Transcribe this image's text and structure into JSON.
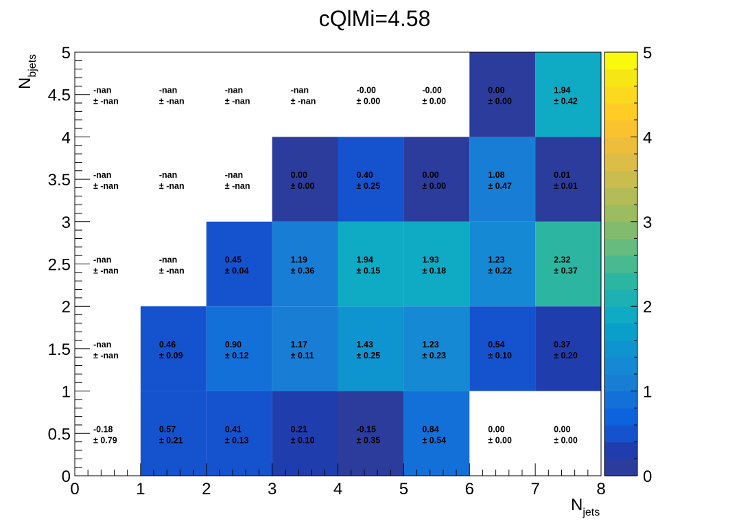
{
  "chart_data": {
    "type": "heatmap",
    "title": "cQlMi=4.58",
    "xlabel": "N",
    "xlabel_sub": "jets",
    "ylabel": "N",
    "ylabel_sub": "bjets",
    "xlim": [
      0,
      8
    ],
    "ylim": [
      0,
      5
    ],
    "zlim": [
      0,
      5
    ],
    "x_ticks": [
      "0",
      "1",
      "2",
      "3",
      "4",
      "5",
      "6",
      "7",
      "8"
    ],
    "y_ticks": [
      "0",
      "0.5",
      "1",
      "1.5",
      "2",
      "2.5",
      "3",
      "3.5",
      "4",
      "4.5",
      "5"
    ],
    "z_ticks": [
      "0",
      "1",
      "2",
      "3",
      "4",
      "5"
    ],
    "x_bins": [
      0,
      1,
      2,
      3,
      4,
      5,
      6,
      7,
      8
    ],
    "y_bins": [
      0,
      1,
      2,
      3,
      4,
      5
    ],
    "colormap": [
      "#2c3c9c",
      "#203dad",
      "#1552ce",
      "#0d62dd",
      "#1370d9",
      "#187dd4",
      "#1589d3",
      "#0e95d0",
      "#0a9fcb",
      "#0faac3",
      "#1eb1b3",
      "#2cb6a2",
      "#49b991",
      "#66bb7f",
      "#82bb6e",
      "#9cbc60",
      "#b3bc56",
      "#c9bd4f",
      "#dcbd48",
      "#edbd3c",
      "#fac22f",
      "#fdcd25",
      "#fbd91e",
      "#f6e614",
      "#f9f90e"
    ],
    "cells": [
      [
        {
          "value": -0.18,
          "label": "-0.18",
          "error": "± 0.79",
          "filled": false
        },
        {
          "value": 0.57,
          "label": "0.57",
          "error": "± 0.21",
          "filled": true
        },
        {
          "value": 0.41,
          "label": "0.41",
          "error": "± 0.13",
          "filled": true
        },
        {
          "value": 0.21,
          "label": "0.21",
          "error": "± 0.10",
          "filled": true
        },
        {
          "value": -0.15,
          "label": "-0.15",
          "error": "± 0.35",
          "filled": true
        },
        {
          "value": 0.84,
          "label": "0.84",
          "error": "± 0.54",
          "filled": true
        },
        {
          "value": 0.0,
          "label": "0.00",
          "error": "± 0.00",
          "filled": false
        },
        {
          "value": 0.0,
          "label": "0.00",
          "error": "± 0.00",
          "filled": false
        }
      ],
      [
        {
          "value": null,
          "label": "-nan",
          "error": "± -nan",
          "filled": false
        },
        {
          "value": 0.46,
          "label": "0.46",
          "error": "± 0.09",
          "filled": true
        },
        {
          "value": 0.9,
          "label": "0.90",
          "error": "± 0.12",
          "filled": true
        },
        {
          "value": 1.17,
          "label": "1.17",
          "error": "± 0.11",
          "filled": true
        },
        {
          "value": 1.43,
          "label": "1.43",
          "error": "± 0.25",
          "filled": true
        },
        {
          "value": 1.23,
          "label": "1.23",
          "error": "± 0.23",
          "filled": true
        },
        {
          "value": 0.54,
          "label": "0.54",
          "error": "± 0.10",
          "filled": true
        },
        {
          "value": 0.37,
          "label": "0.37",
          "error": "± 0.20",
          "filled": true
        }
      ],
      [
        {
          "value": null,
          "label": "-nan",
          "error": "± -nan",
          "filled": false
        },
        {
          "value": null,
          "label": "-nan",
          "error": "± -nan",
          "filled": false
        },
        {
          "value": 0.45,
          "label": "0.45",
          "error": "± 0.04",
          "filled": true
        },
        {
          "value": 1.19,
          "label": "1.19",
          "error": "± 0.36",
          "filled": true
        },
        {
          "value": 1.94,
          "label": "1.94",
          "error": "± 0.15",
          "filled": true
        },
        {
          "value": 1.93,
          "label": "1.93",
          "error": "± 0.18",
          "filled": true
        },
        {
          "value": 1.23,
          "label": "1.23",
          "error": "± 0.22",
          "filled": true
        },
        {
          "value": 2.32,
          "label": "2.32",
          "error": "± 0.37",
          "filled": true
        }
      ],
      [
        {
          "value": null,
          "label": "-nan",
          "error": "± -nan",
          "filled": false
        },
        {
          "value": null,
          "label": "-nan",
          "error": "± -nan",
          "filled": false
        },
        {
          "value": null,
          "label": "-nan",
          "error": "± -nan",
          "filled": false
        },
        {
          "value": 0.0,
          "label": "0.00",
          "error": "± 0.00",
          "filled": true
        },
        {
          "value": 0.4,
          "label": "0.40",
          "error": "± 0.25",
          "filled": true
        },
        {
          "value": 0.0,
          "label": "0.00",
          "error": "± 0.00",
          "filled": true
        },
        {
          "value": 1.08,
          "label": "1.08",
          "error": "± 0.47",
          "filled": true
        },
        {
          "value": 0.01,
          "label": "0.01",
          "error": "± 0.01",
          "filled": true
        }
      ],
      [
        {
          "value": null,
          "label": "-nan",
          "error": "± -nan",
          "filled": false
        },
        {
          "value": null,
          "label": "-nan",
          "error": "± -nan",
          "filled": false
        },
        {
          "value": null,
          "label": "-nan",
          "error": "± -nan",
          "filled": false
        },
        {
          "value": null,
          "label": "-nan",
          "error": "± -nan",
          "filled": false
        },
        {
          "value": -0.0,
          "label": "-0.00",
          "error": "± 0.00",
          "filled": false
        },
        {
          "value": -0.0,
          "label": "-0.00",
          "error": "± 0.00",
          "filled": false
        },
        {
          "value": 0.0,
          "label": "0.00",
          "error": "± 0.00",
          "filled": true
        },
        {
          "value": 1.94,
          "label": "1.94",
          "error": "± 0.42",
          "filled": true
        }
      ]
    ]
  }
}
